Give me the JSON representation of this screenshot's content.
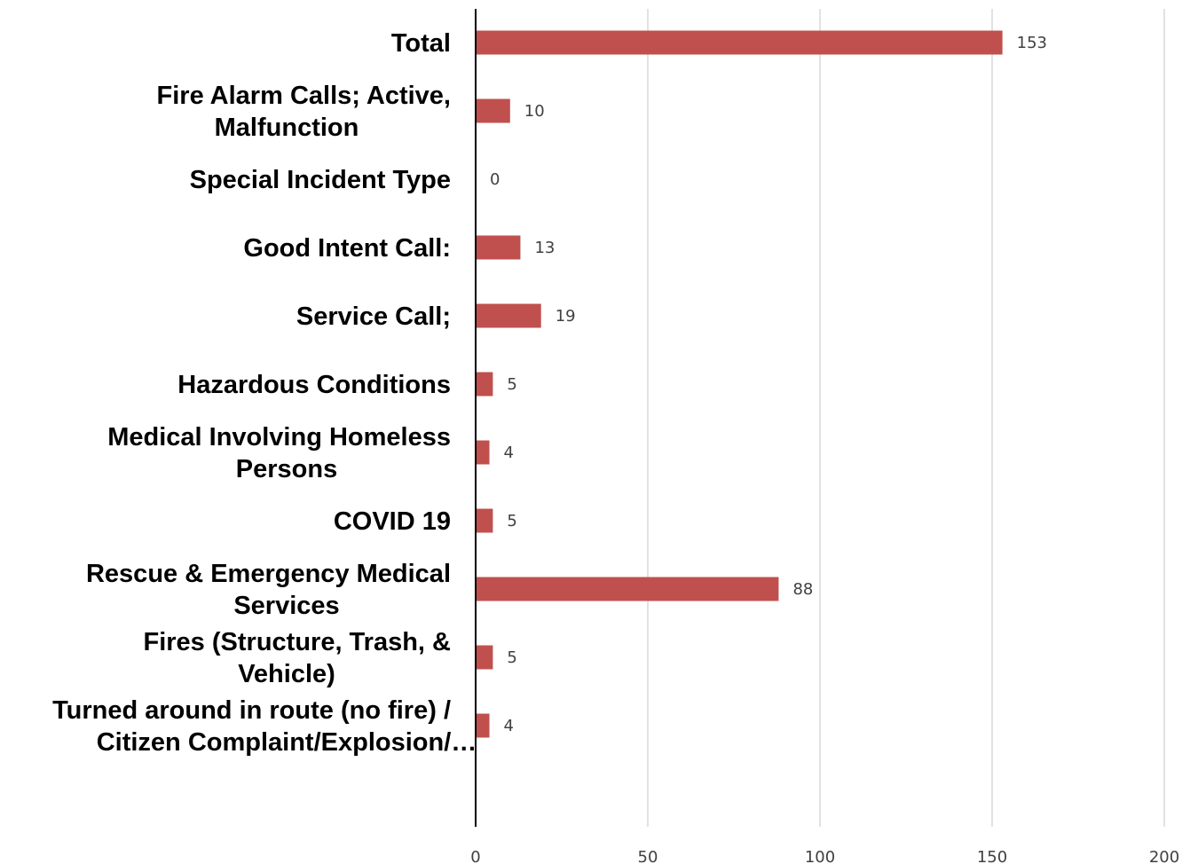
{
  "chart_data": {
    "type": "bar",
    "orientation": "horizontal",
    "title": "",
    "xlabel": "",
    "ylabel": "",
    "xlim": [
      0,
      200
    ],
    "x_ticks": [
      0,
      50,
      100,
      150,
      200
    ],
    "grid": "vertical",
    "legend": "none",
    "bar_color": "#C0504D",
    "categories": [
      [
        "Total"
      ],
      [
        "Fire Alarm Calls; Active,",
        "Malfunction"
      ],
      [
        "Special Incident Type"
      ],
      [
        "Good Intent Call:"
      ],
      [
        "Service Call;"
      ],
      [
        "Hazardous Conditions"
      ],
      [
        "Medical Involving Homeless",
        "Persons"
      ],
      [
        "COVID 19"
      ],
      [
        "Rescue & Emergency Medical",
        "Services"
      ],
      [
        "Fires (Structure, Trash, &",
        "Vehicle)"
      ],
      [
        "Turned around in route (no fire) /",
        "Citizen Complaint/Explosion/…"
      ]
    ],
    "values": [
      153,
      10,
      0,
      13,
      19,
      5,
      4,
      5,
      88,
      5,
      4
    ]
  }
}
